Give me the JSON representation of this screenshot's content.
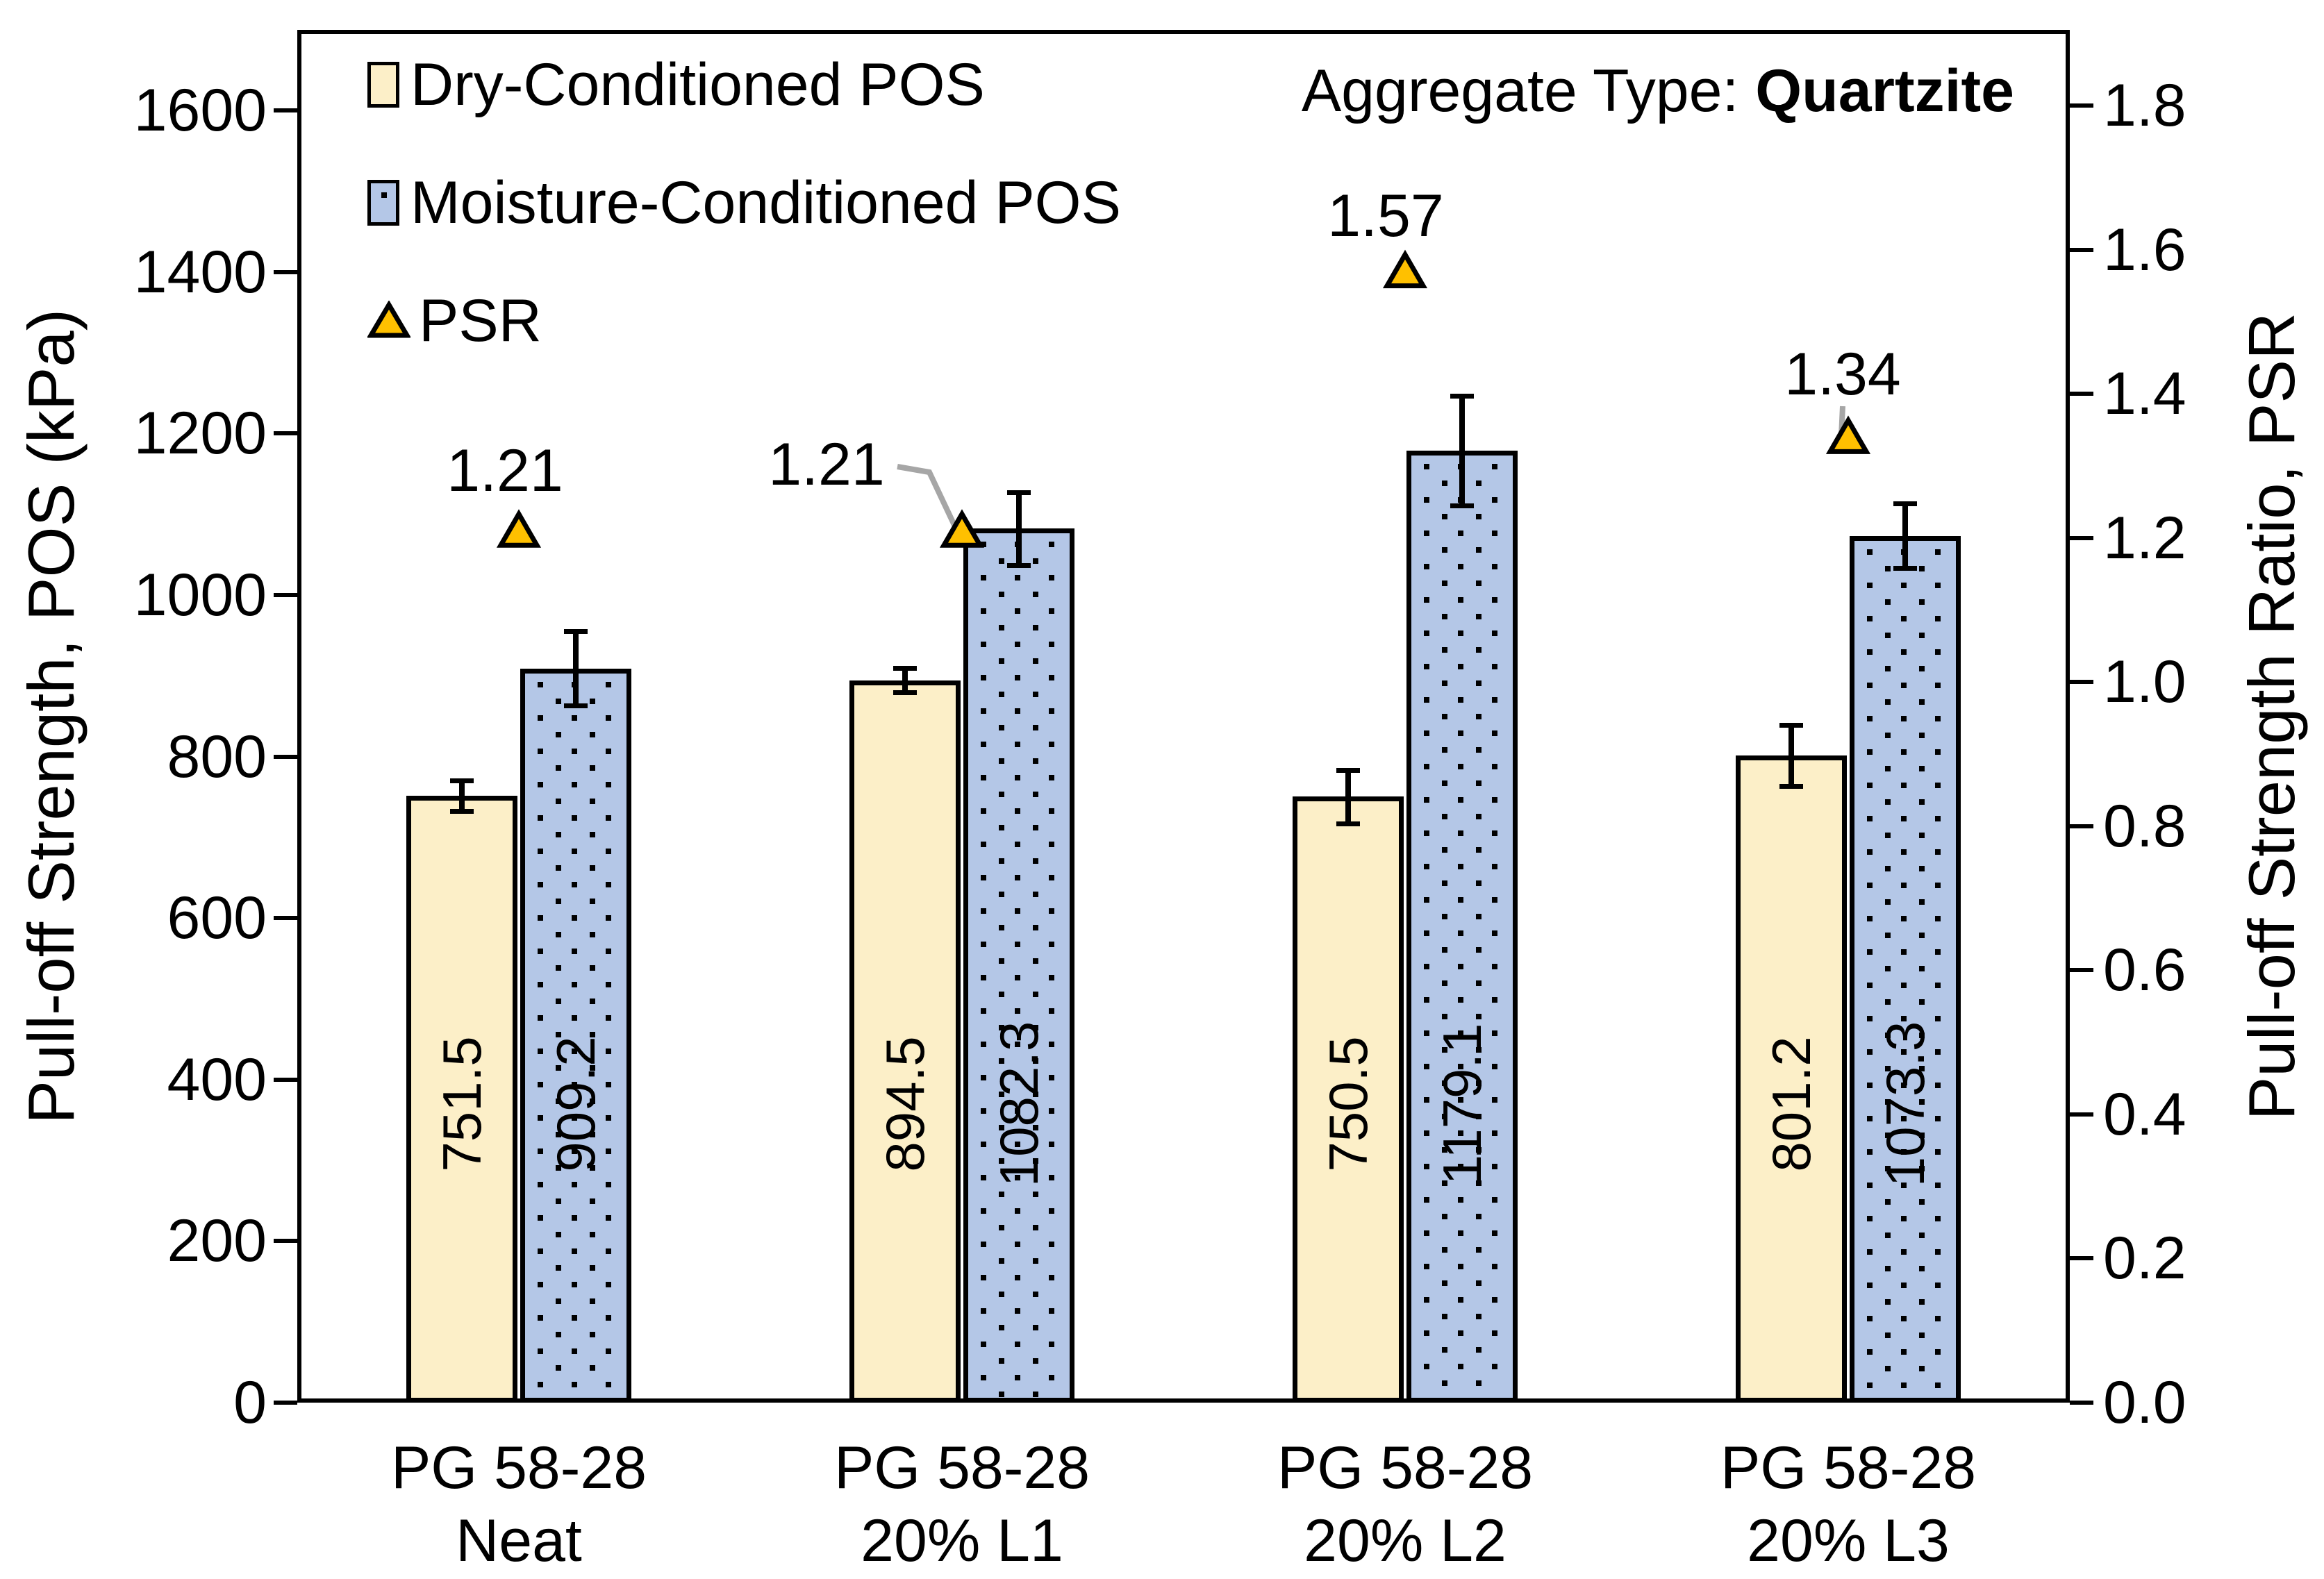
{
  "title": {
    "prefix": "Aggregate Type: ",
    "aggregate": "Quartzite"
  },
  "axes": {
    "left_title": "Pull-off Strength, POS (kPa)",
    "right_title": "Pull-off Strength Ratio, PSR"
  },
  "legend": [
    {
      "label": "Dry-Conditioned POS",
      "swatch": "dry"
    },
    {
      "label": "Moisture-Conditioned POS",
      "swatch": "moist"
    },
    {
      "label": "PSR",
      "swatch": "psr-triangle"
    }
  ],
  "colors": {
    "dry_fill": "#FCEFC8",
    "moist_fill": "#B4C7E7",
    "psr_fill": "#FFC000",
    "leader_gray": "#A6A6A6",
    "axis_black": "#000000",
    "background": "#FFFFFF"
  },
  "chart_data": {
    "type": "bar",
    "title": "Aggregate Type: Quartzite",
    "categories": [
      [
        "PG 58-28",
        "Neat"
      ],
      [
        "PG 58-28",
        "20% L1"
      ],
      [
        "PG 58-28",
        "20% L2"
      ],
      [
        "PG 58-28",
        "20% L3"
      ]
    ],
    "series": [
      {
        "name": "Dry-Conditioned POS",
        "axis": "left",
        "type": "bar",
        "values": [
          751.5,
          894.5,
          750.5,
          801.2
        ],
        "errors": [
          19,
          15,
          33,
          38
        ]
      },
      {
        "name": "Moisture-Conditioned POS",
        "axis": "left",
        "type": "bar",
        "values": [
          909.2,
          1082.3,
          1179.1,
          1073.3
        ],
        "errors": [
          46,
          45,
          68,
          40
        ]
      },
      {
        "name": "PSR",
        "axis": "right",
        "type": "scatter-triangle",
        "values": [
          1.21,
          1.21,
          1.57,
          1.34
        ]
      }
    ],
    "left_axis": {
      "label": "Pull-off Strength, POS (kPa)",
      "min": 0,
      "max": 1700,
      "ticks": [
        "0",
        "200",
        "400",
        "600",
        "800",
        "1000",
        "1200",
        "1400",
        "1600"
      ],
      "tick_step": 200
    },
    "right_axis": {
      "label": "Pull-off Strength Ratio, PSR",
      "min": 0,
      "max": 1.905,
      "ticks": [
        "0.0",
        "0.2",
        "0.4",
        "0.6",
        "0.8",
        "1.0",
        "1.2",
        "1.4",
        "1.6",
        "1.8"
      ],
      "tick_step": 0.2
    },
    "grid": false,
    "legend_position": "top-left-inside",
    "bar_value_labels_rotated": true
  }
}
